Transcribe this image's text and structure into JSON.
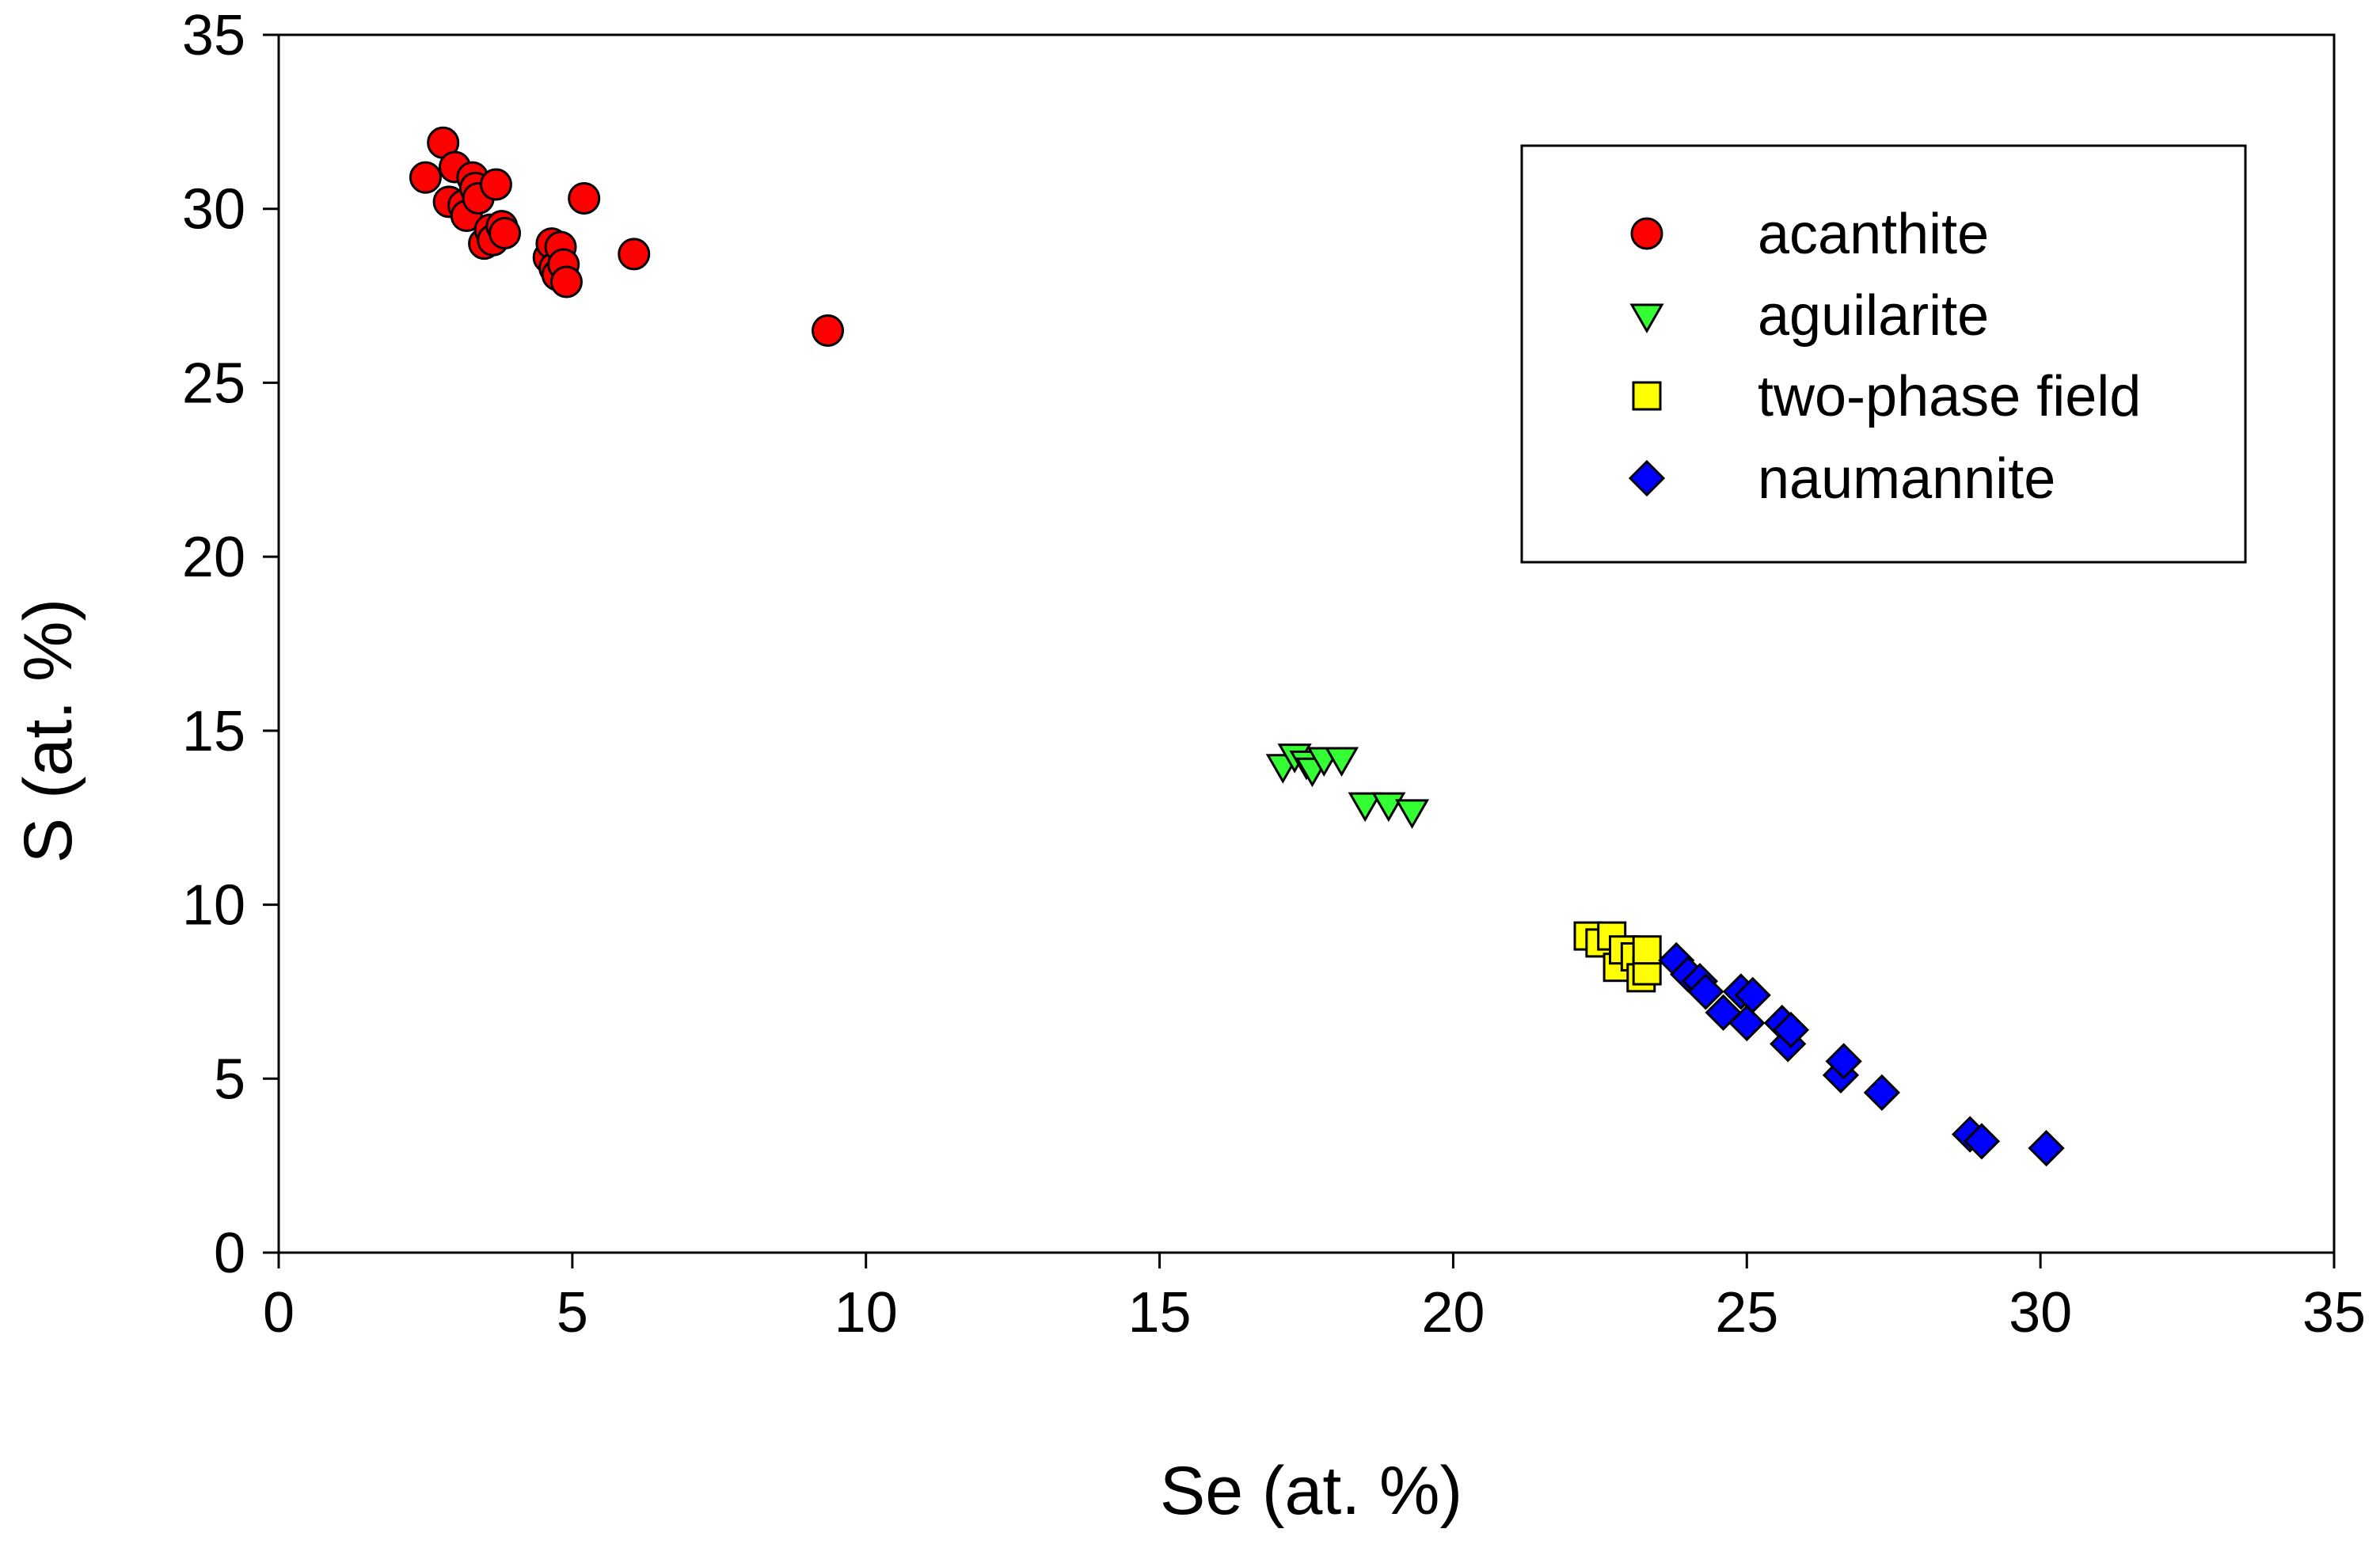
{
  "chart_data": {
    "type": "scatter",
    "title": "",
    "xlabel": "Se (at. %)",
    "ylabel": "S (at. %)",
    "xlim": [
      0,
      35
    ],
    "ylim": [
      0,
      35
    ],
    "xticks": [
      0,
      5,
      10,
      15,
      20,
      25,
      30,
      35
    ],
    "yticks": [
      0,
      5,
      10,
      15,
      20,
      25,
      30,
      35
    ],
    "grid": false,
    "legend_position": "top-right",
    "series": [
      {
        "name": "acanthite",
        "marker": "circle",
        "color": "#ff0000",
        "points": [
          [
            2.5,
            30.9
          ],
          [
            2.8,
            31.9
          ],
          [
            2.9,
            30.2
          ],
          [
            3.0,
            31.2
          ],
          [
            3.15,
            30.1
          ],
          [
            3.2,
            29.8
          ],
          [
            3.3,
            30.9
          ],
          [
            3.35,
            30.6
          ],
          [
            3.4,
            30.3
          ],
          [
            3.5,
            29.0
          ],
          [
            3.6,
            29.4
          ],
          [
            3.65,
            29.1
          ],
          [
            3.7,
            30.7
          ],
          [
            3.8,
            29.5
          ],
          [
            3.85,
            29.3
          ],
          [
            4.6,
            28.6
          ],
          [
            4.65,
            29.0
          ],
          [
            4.7,
            28.3
          ],
          [
            4.75,
            28.1
          ],
          [
            4.8,
            28.9
          ],
          [
            4.85,
            28.4
          ],
          [
            4.9,
            27.9
          ],
          [
            5.2,
            30.3
          ],
          [
            6.05,
            28.7
          ],
          [
            9.35,
            26.5
          ]
        ]
      },
      {
        "name": "aguilarite",
        "marker": "triangle-down",
        "color": "#33ff33",
        "points": [
          [
            17.1,
            14.0
          ],
          [
            17.3,
            14.3
          ],
          [
            17.5,
            14.1
          ],
          [
            17.6,
            13.9
          ],
          [
            17.8,
            14.2
          ],
          [
            18.1,
            14.2
          ],
          [
            18.5,
            12.9
          ],
          [
            18.9,
            12.9
          ],
          [
            19.3,
            12.7
          ]
        ]
      },
      {
        "name": "two-phase field",
        "marker": "square",
        "color": "#ffff00",
        "points": [
          [
            22.3,
            9.1
          ],
          [
            22.5,
            8.9
          ],
          [
            22.7,
            9.1
          ],
          [
            22.8,
            8.2
          ],
          [
            22.9,
            8.7
          ],
          [
            23.1,
            8.5
          ],
          [
            23.2,
            7.9
          ],
          [
            23.3,
            8.1
          ],
          [
            23.3,
            8.7
          ]
        ]
      },
      {
        "name": "naumannite",
        "marker": "diamond",
        "color": "#0000ff",
        "points": [
          [
            23.8,
            8.4
          ],
          [
            24.0,
            8.0
          ],
          [
            24.2,
            7.8
          ],
          [
            24.3,
            7.5
          ],
          [
            24.6,
            6.9
          ],
          [
            24.9,
            7.5
          ],
          [
            25.0,
            6.6
          ],
          [
            25.1,
            7.4
          ],
          [
            25.6,
            6.6
          ],
          [
            25.7,
            6.0
          ],
          [
            25.75,
            6.4
          ],
          [
            26.6,
            5.1
          ],
          [
            26.65,
            5.5
          ],
          [
            27.3,
            4.6
          ],
          [
            28.8,
            3.4
          ],
          [
            29.0,
            3.2
          ],
          [
            30.1,
            3.0
          ]
        ]
      }
    ]
  }
}
